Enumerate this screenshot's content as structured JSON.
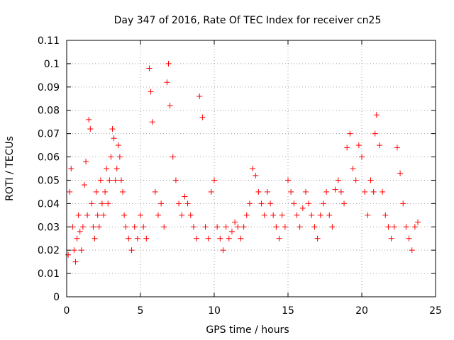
{
  "chart_data": {
    "type": "scatter",
    "title": "Day 347 of 2016, Rate Of TEC Index for receiver cn25",
    "xlabel": "GPS time / hours",
    "ylabel": "ROTI / TECUs",
    "xlim": [
      0,
      25
    ],
    "ylim": [
      0,
      0.11
    ],
    "xticks": [
      0,
      5,
      10,
      15,
      20,
      25
    ],
    "yticks": [
      0,
      0.01,
      0.02,
      0.03,
      0.04,
      0.05,
      0.06,
      0.07,
      0.08,
      0.09,
      0.1,
      0.11
    ],
    "xtick_labels": [
      "0",
      "5",
      "10",
      "15",
      "20",
      "25"
    ],
    "ytick_labels": [
      "0",
      "0.01",
      "0.02",
      "0.03",
      "0.04",
      "0.05",
      "0.06",
      "0.07",
      "0.08",
      "0.09",
      "0.1",
      "0.11"
    ],
    "grid": true,
    "marker": "+",
    "series_color": "#ff0000",
    "series": [
      {
        "name": "ROTI",
        "x": [
          0.1,
          0.2,
          0.3,
          0.4,
          0.5,
          0.6,
          0.7,
          0.8,
          0.9,
          1.0,
          1.1,
          1.2,
          1.3,
          1.4,
          1.5,
          1.6,
          1.7,
          1.8,
          1.9,
          2.0,
          2.1,
          2.2,
          2.3,
          2.4,
          2.5,
          2.6,
          2.7,
          2.8,
          2.9,
          3.0,
          3.1,
          3.2,
          3.3,
          3.4,
          3.5,
          3.6,
          3.7,
          3.8,
          3.9,
          4.0,
          4.2,
          4.4,
          4.6,
          4.8,
          5.0,
          5.2,
          5.4,
          5.6,
          5.7,
          5.8,
          6.0,
          6.2,
          6.4,
          6.6,
          6.8,
          6.9,
          7.0,
          7.2,
          7.4,
          7.6,
          7.8,
          8.0,
          8.2,
          8.4,
          8.6,
          8.8,
          9.0,
          9.2,
          9.4,
          9.6,
          9.8,
          10.0,
          10.2,
          10.4,
          10.6,
          10.8,
          11.0,
          11.2,
          11.4,
          11.6,
          11.8,
          12.0,
          12.2,
          12.4,
          12.6,
          12.8,
          13.0,
          13.2,
          13.4,
          13.6,
          13.8,
          14.0,
          14.2,
          14.4,
          14.6,
          14.8,
          15.0,
          15.2,
          15.4,
          15.6,
          15.8,
          16.0,
          16.2,
          16.4,
          16.6,
          16.8,
          17.0,
          17.2,
          17.4,
          17.6,
          17.8,
          18.0,
          18.2,
          18.4,
          18.6,
          18.8,
          19.0,
          19.2,
          19.4,
          19.6,
          19.8,
          20.0,
          20.2,
          20.4,
          20.6,
          20.8,
          20.9,
          21.0,
          21.2,
          21.4,
          21.6,
          21.8,
          22.0,
          22.2,
          22.4,
          22.6,
          22.8,
          23.0,
          23.2,
          23.4,
          23.6,
          23.8
        ],
        "y": [
          0.018,
          0.045,
          0.055,
          0.03,
          0.02,
          0.015,
          0.025,
          0.035,
          0.028,
          0.02,
          0.03,
          0.048,
          0.058,
          0.035,
          0.076,
          0.072,
          0.04,
          0.03,
          0.025,
          0.045,
          0.035,
          0.03,
          0.05,
          0.04,
          0.035,
          0.045,
          0.055,
          0.04,
          0.05,
          0.06,
          0.072,
          0.068,
          0.05,
          0.055,
          0.065,
          0.06,
          0.05,
          0.045,
          0.035,
          0.03,
          0.025,
          0.02,
          0.03,
          0.025,
          0.035,
          0.03,
          0.025,
          0.098,
          0.088,
          0.075,
          0.045,
          0.035,
          0.04,
          0.03,
          0.092,
          0.1,
          0.082,
          0.06,
          0.05,
          0.04,
          0.035,
          0.043,
          0.04,
          0.035,
          0.03,
          0.025,
          0.086,
          0.077,
          0.03,
          0.025,
          0.045,
          0.05,
          0.03,
          0.025,
          0.02,
          0.03,
          0.025,
          0.028,
          0.032,
          0.03,
          0.025,
          0.03,
          0.035,
          0.04,
          0.055,
          0.052,
          0.045,
          0.04,
          0.035,
          0.045,
          0.04,
          0.035,
          0.03,
          0.025,
          0.035,
          0.03,
          0.05,
          0.045,
          0.04,
          0.035,
          0.03,
          0.038,
          0.045,
          0.04,
          0.035,
          0.03,
          0.025,
          0.035,
          0.04,
          0.045,
          0.035,
          0.03,
          0.046,
          0.05,
          0.045,
          0.04,
          0.064,
          0.07,
          0.055,
          0.05,
          0.065,
          0.06,
          0.045,
          0.035,
          0.05,
          0.045,
          0.07,
          0.078,
          0.065,
          0.045,
          0.035,
          0.03,
          0.025,
          0.03,
          0.064,
          0.053,
          0.04,
          0.03,
          0.025,
          0.02,
          0.03,
          0.032
        ]
      }
    ]
  }
}
